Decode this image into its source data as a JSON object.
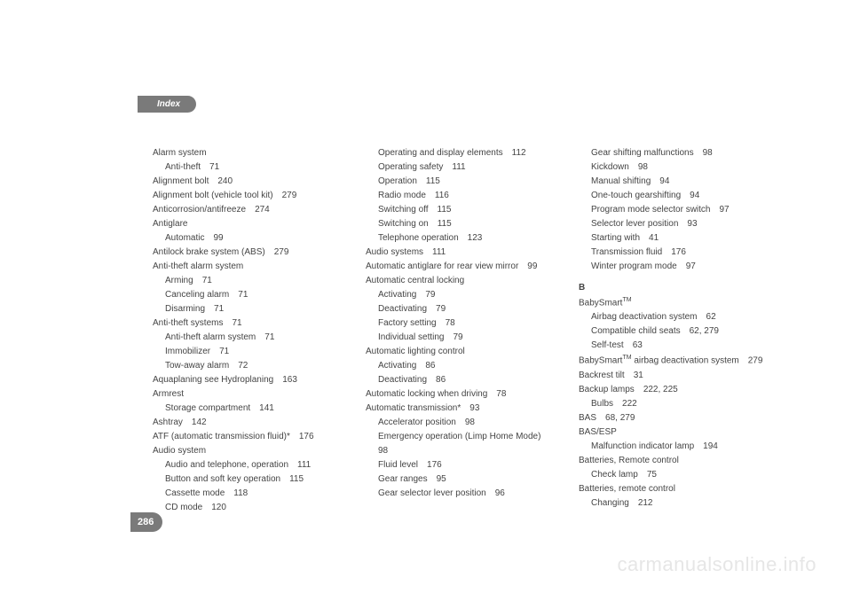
{
  "header": {
    "title": "Index"
  },
  "pagenum": "286",
  "watermark": "carmanualsonline.info",
  "col1": [
    {
      "t": "Alarm system",
      "i": 0
    },
    {
      "t": "Anti-theft",
      "p": "71",
      "i": 1
    },
    {
      "t": "Alignment bolt",
      "p": "240",
      "i": 0
    },
    {
      "t": "Alignment bolt (vehicle tool kit)",
      "p": "279",
      "i": 0
    },
    {
      "t": "Anticorrosion/antifreeze",
      "p": "274",
      "i": 0
    },
    {
      "t": "Antiglare",
      "i": 0
    },
    {
      "t": "Automatic",
      "p": "99",
      "i": 1
    },
    {
      "t": "Antilock brake system (ABS)",
      "p": "279",
      "i": 0
    },
    {
      "t": "Anti-theft alarm system",
      "i": 0
    },
    {
      "t": "Arming",
      "p": "71",
      "i": 1
    },
    {
      "t": "Canceling alarm",
      "p": "71",
      "i": 1
    },
    {
      "t": "Disarming",
      "p": "71",
      "i": 1
    },
    {
      "t": "Anti-theft systems",
      "p": "71",
      "i": 0
    },
    {
      "t": "Anti-theft alarm system",
      "p": "71",
      "i": 1
    },
    {
      "t": "Immobilizer",
      "p": "71",
      "i": 1
    },
    {
      "t": "Tow-away alarm",
      "p": "72",
      "i": 1
    },
    {
      "t": "Aquaplaning see Hydroplaning",
      "p": "163",
      "i": 0
    },
    {
      "t": "Armrest",
      "i": 0
    },
    {
      "t": "Storage compartment",
      "p": "141",
      "i": 1
    },
    {
      "t": "Ashtray",
      "p": "142",
      "i": 0
    },
    {
      "t": "ATF (automatic transmission fluid)*",
      "p": "176",
      "i": 0
    },
    {
      "t": "Audio system",
      "i": 0
    },
    {
      "t": "Audio and telephone, operation",
      "p": "111",
      "i": 1
    },
    {
      "t": "Button and soft key operation",
      "p": "115",
      "i": 1
    },
    {
      "t": "Cassette mode",
      "p": "118",
      "i": 1
    },
    {
      "t": "CD mode",
      "p": "120",
      "i": 1
    }
  ],
  "col2": [
    {
      "t": "Operating and display elements",
      "p": "112",
      "i": 1
    },
    {
      "t": "Operating safety",
      "p": "111",
      "i": 1
    },
    {
      "t": "Operation",
      "p": "115",
      "i": 1
    },
    {
      "t": "Radio mode",
      "p": "116",
      "i": 1
    },
    {
      "t": "Switching off",
      "p": "115",
      "i": 1
    },
    {
      "t": "Switching on",
      "p": "115",
      "i": 1
    },
    {
      "t": "Telephone operation",
      "p": "123",
      "i": 1
    },
    {
      "t": "Audio systems",
      "p": "111",
      "i": 0
    },
    {
      "t": "Automatic antiglare for rear view mirror",
      "p": "99",
      "i": 0,
      "wrap": true
    },
    {
      "t": "Automatic central locking",
      "i": 0
    },
    {
      "t": "Activating",
      "p": "79",
      "i": 1
    },
    {
      "t": "Deactivating",
      "p": "79",
      "i": 1
    },
    {
      "t": "Factory setting",
      "p": "78",
      "i": 1
    },
    {
      "t": "Individual setting",
      "p": "79",
      "i": 1
    },
    {
      "t": "Automatic lighting control",
      "i": 0
    },
    {
      "t": "Activating",
      "p": "86",
      "i": 1
    },
    {
      "t": "Deactivating",
      "p": "86",
      "i": 1
    },
    {
      "t": "Automatic locking when driving",
      "p": "78",
      "i": 0
    },
    {
      "t": "Automatic transmission*",
      "p": "93",
      "i": 0
    },
    {
      "t": "Accelerator position",
      "p": "98",
      "i": 1
    },
    {
      "t": "Emergency operation (Limp Home Mode)",
      "p": "98",
      "i": 1,
      "wrap": true
    },
    {
      "t": "Fluid level",
      "p": "176",
      "i": 1
    },
    {
      "t": "Gear ranges",
      "p": "95",
      "i": 1
    },
    {
      "t": "Gear selector lever position",
      "p": "96",
      "i": 1
    }
  ],
  "col3": [
    {
      "t": "Gear shifting malfunctions",
      "p": "98",
      "i": 1
    },
    {
      "t": "Kickdown",
      "p": "98",
      "i": 1
    },
    {
      "t": "Manual shifting",
      "p": "94",
      "i": 1
    },
    {
      "t": "One-touch gearshifting",
      "p": "94",
      "i": 1
    },
    {
      "t": "Program mode selector switch",
      "p": "97",
      "i": 1
    },
    {
      "t": "Selector lever position",
      "p": "93",
      "i": 1
    },
    {
      "t": "Starting with",
      "p": "41",
      "i": 1
    },
    {
      "t": "Transmission fluid",
      "p": "176",
      "i": 1
    },
    {
      "t": "Winter program mode",
      "p": "97",
      "i": 1
    },
    {
      "letter": "B"
    },
    {
      "t": "BabySmart",
      "sup": "TM",
      "i": 0
    },
    {
      "t": "Airbag deactivation system",
      "p": "62",
      "i": 1
    },
    {
      "t": "Compatible child seats",
      "p": "62, 279",
      "i": 1
    },
    {
      "t": "Self-test",
      "p": "63",
      "i": 1
    },
    {
      "t": "BabySmart",
      "sup": "TM",
      "t2": " airbag deactivation system",
      "p": "279",
      "i": 0,
      "wrap": true
    },
    {
      "t": "Backrest tilt",
      "p": "31",
      "i": 0
    },
    {
      "t": "Backup lamps",
      "p": "222, 225",
      "i": 0
    },
    {
      "t": "Bulbs",
      "p": "222",
      "i": 1
    },
    {
      "t": "BAS",
      "p": "68, 279",
      "i": 0
    },
    {
      "t": "BAS/ESP",
      "i": 0
    },
    {
      "t": "Malfunction indicator lamp",
      "p": "194",
      "i": 1
    },
    {
      "t": "Batteries, Remote control",
      "i": 0
    },
    {
      "t": "Check lamp",
      "p": "75",
      "i": 1
    },
    {
      "t": "Batteries, remote control",
      "i": 0
    },
    {
      "t": "Changing",
      "p": "212",
      "i": 1
    }
  ]
}
